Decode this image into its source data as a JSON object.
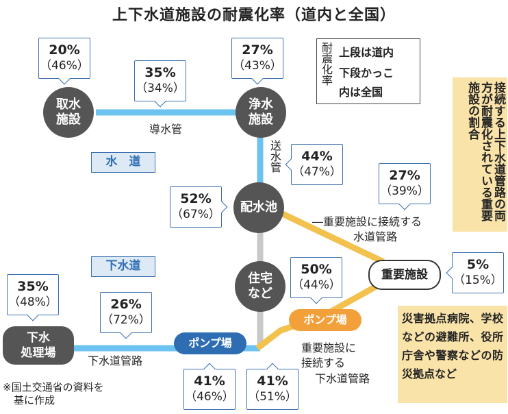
{
  "title": "上下水道施設の耐震化率（道内と全国）",
  "legend": {
    "vertical_label": "耐震化率",
    "line1": "上段は道内",
    "line2": "下段かっこ",
    "line3": "内は全国"
  },
  "nodes": {
    "intake": "取水\n施設",
    "purification": "浄水\n施設",
    "reservoir": "配水池",
    "housing": "住宅\nなど",
    "important": "重要施設",
    "sewage": "下水\n処理場",
    "pump_blue": "ポンプ場",
    "pump_orange": "ポンプ場"
  },
  "section_labels": {
    "water": "水　道",
    "sewer": "下水道"
  },
  "pipe_labels": {
    "conduit": "導水管",
    "supply": "送水管",
    "water_to_important": "―重要施設に接続する",
    "water_to_important_2": "水道管路",
    "sewer_pipe": "下水道管路",
    "sewer_to_important_1": "重要施設に",
    "sewer_to_important_2": "接続する",
    "sewer_to_important_3": "下水道管路"
  },
  "callouts": {
    "intake": {
      "main": "20%",
      "sub": "（46%）"
    },
    "conduit": {
      "main": "35%",
      "sub": "（34%）"
    },
    "purification": {
      "main": "27%",
      "sub": "（43%）"
    },
    "supply": {
      "main": "44%",
      "sub": "（47%）"
    },
    "reservoir": {
      "main": "52%",
      "sub": "（67%）"
    },
    "water_important": {
      "main": "27%",
      "sub": "（39%）"
    },
    "important": {
      "main": "5%",
      "sub": "（15%）"
    },
    "pump_orange": {
      "main": "50%",
      "sub": "（44%）"
    },
    "sewage": {
      "main": "35%",
      "sub": "（48%）"
    },
    "sewer_pipe": {
      "main": "26%",
      "sub": "（72%）"
    },
    "pump_blue": {
      "main": "41%",
      "sub": "（46%）"
    },
    "sewer_important": {
      "main": "41%",
      "sub": "（51%）"
    }
  },
  "annotation_vertical": "接続する上下水道管路の両方が耐震化されている重要施設の割合",
  "annotation_facilities": "災害拠点病院、学校などの避難所、役所庁舎や警察などの防災拠点など",
  "source_note_1": "※国土交通省の資料を",
  "source_note_2": "基に作成",
  "colors": {
    "water_pipe": "#6cc3ef",
    "sewer_pipe": "#6cc3ef",
    "important_pipe": "#f2c14e",
    "node_gray": "#555555",
    "pump_blue": "#2f6db3",
    "pump_orange": "#f1a03a",
    "callout_border": "#3a6fb0",
    "annotation_bg": "#fae3a9"
  }
}
